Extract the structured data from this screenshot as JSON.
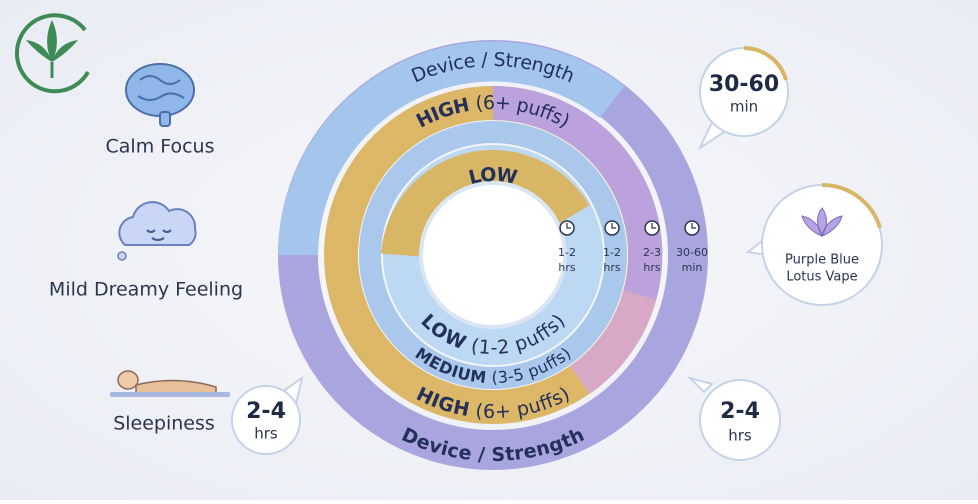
{
  "effects": [
    {
      "label": "Calm Focus"
    },
    {
      "label": "Mild Dreamy Feeling"
    },
    {
      "label": "Sleepiness"
    }
  ],
  "rings": {
    "outer_top": "Device / Strength",
    "high_top": {
      "level": "HIGH",
      "detail": "(6+ puffs)"
    },
    "inner_top": "LOW",
    "low": {
      "level": "LOW",
      "detail": "(1-2 puffs)"
    },
    "medium": {
      "level": "MEDIUM",
      "detail": "(3-5 puffs)"
    },
    "high_bottom": {
      "level": "HIGH",
      "detail": "(6+ puffs)"
    },
    "outer_bottom": "Device / Strength"
  },
  "durations": [
    {
      "value": "1-2",
      "unit": "hrs"
    },
    {
      "value": "1-2",
      "unit": "hrs"
    },
    {
      "value": "2-3",
      "unit": "hrs"
    },
    {
      "value": "30-60",
      "unit": "min"
    }
  ],
  "bubbles": {
    "onset": {
      "value": "30-60",
      "unit": "min"
    },
    "product": {
      "line1": "Purple Blue",
      "line2": "Lotus Vape"
    },
    "left": {
      "value": "2-4",
      "unit": "hrs"
    },
    "right": {
      "value": "2-4",
      "unit": "hrs"
    }
  }
}
